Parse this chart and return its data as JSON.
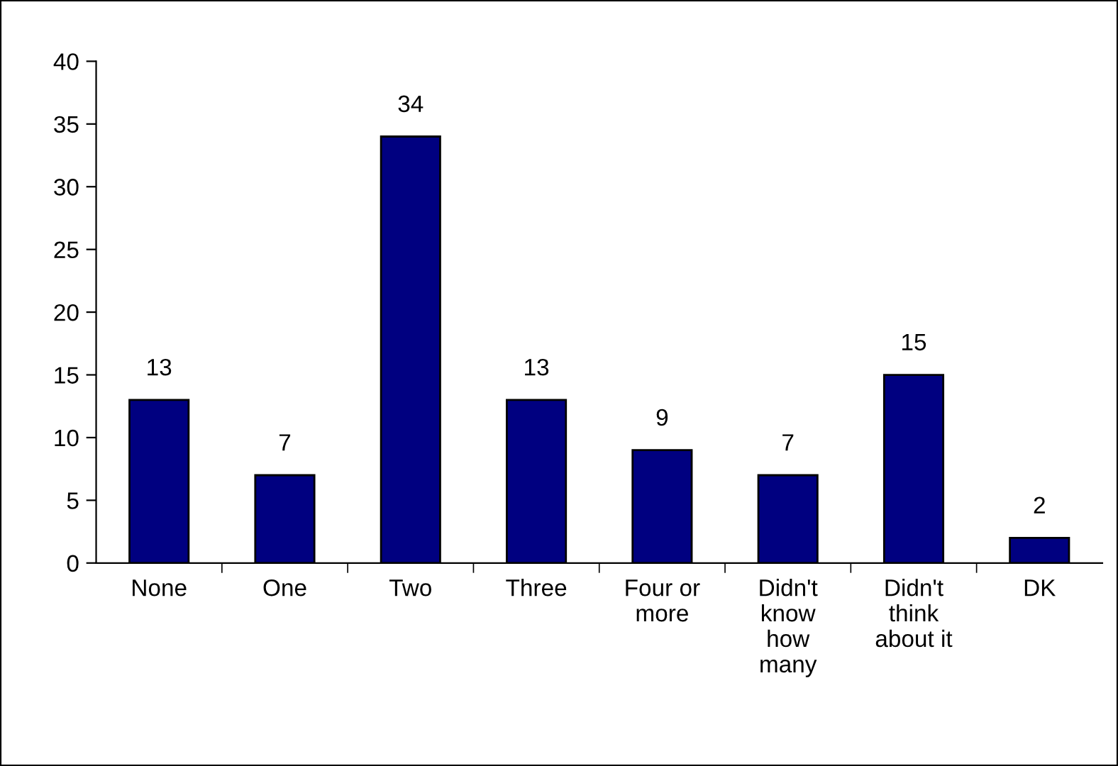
{
  "chart_data": {
    "type": "bar",
    "categories": [
      "None",
      "One",
      "Two",
      "Three",
      "Four or\nmore",
      "Didn't\nknow\nhow\nmany",
      "Didn't\nthink\nabout it",
      "DK"
    ],
    "values": [
      13,
      7,
      34,
      13,
      9,
      7,
      15,
      2
    ],
    "color": "#000080",
    "ylim": [
      0,
      40
    ],
    "yticks": [
      0,
      5,
      10,
      15,
      20,
      25,
      30,
      35,
      40
    ],
    "grid": false,
    "data_labels": true
  }
}
